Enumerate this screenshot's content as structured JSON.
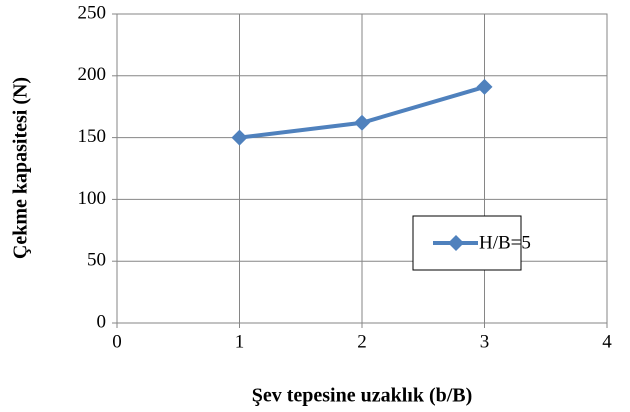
{
  "chart_data": {
    "type": "line",
    "x_label": "Şev tepesine uzaklık (b/B)",
    "y_label": "Çekme kapasitesi (N)",
    "series": [
      {
        "name": "H/B=5",
        "color": "#4f81bd",
        "x": [
          1,
          2,
          3
        ],
        "values": [
          150,
          162,
          191
        ]
      }
    ],
    "xlim": [
      0,
      4
    ],
    "xticks": [
      0,
      1,
      2,
      3,
      4
    ],
    "ylim": [
      0,
      250
    ],
    "yticks": [
      0,
      50,
      100,
      150,
      200,
      250
    ],
    "grid": true,
    "legend": "right"
  }
}
